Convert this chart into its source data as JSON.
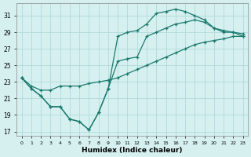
{
  "xlabel": "Humidex (Indice chaleur)",
  "background_color": "#d6f0f0",
  "grid_color": "#b0dada",
  "line_color": "#1a7a6e",
  "hours": [
    0,
    1,
    2,
    3,
    4,
    5,
    6,
    7,
    8,
    9,
    10,
    11,
    12,
    13,
    14,
    15,
    16,
    17,
    18,
    19,
    20,
    21,
    22,
    23
  ],
  "line1": [
    23.5,
    22.2,
    21.3,
    20.0,
    20.0,
    18.5,
    18.2,
    17.2,
    19.3,
    22.2,
    28.5,
    29.0,
    29.2,
    30.0,
    31.3,
    31.5,
    31.8,
    31.5,
    31.0,
    30.5,
    29.5,
    29.2,
    29.0,
    28.8
  ],
  "line2": [
    23.5,
    22.2,
    21.3,
    20.0,
    20.0,
    18.5,
    18.2,
    17.2,
    19.3,
    22.2,
    25.5,
    25.8,
    26.0,
    28.5,
    29.0,
    29.5,
    30.0,
    30.2,
    30.5,
    30.2,
    29.5,
    29.0,
    29.0,
    28.5
  ],
  "line3": [
    23.5,
    22.5,
    22.0,
    22.0,
    22.5,
    22.5,
    22.5,
    22.8,
    23.0,
    23.2,
    23.5,
    24.0,
    24.5,
    25.0,
    25.5,
    26.0,
    26.5,
    27.0,
    27.5,
    27.8,
    28.0,
    28.2,
    28.5,
    28.5
  ],
  "ylim": [
    16.5,
    32.5
  ],
  "yticks": [
    17,
    19,
    21,
    23,
    25,
    27,
    29,
    31
  ],
  "xlim": [
    -0.5,
    23.5
  ],
  "xticks": [
    0,
    1,
    2,
    3,
    4,
    5,
    6,
    7,
    8,
    9,
    10,
    11,
    12,
    13,
    14,
    15,
    16,
    17,
    18,
    19,
    20,
    21,
    22,
    23
  ]
}
